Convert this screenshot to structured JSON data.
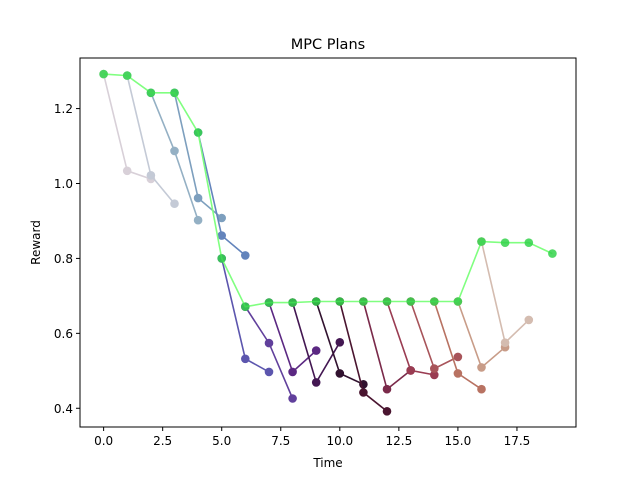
{
  "chart_data": {
    "type": "line",
    "title": "MPC Plans",
    "xlabel": "Time",
    "ylabel": "Reward",
    "xlim": [
      -1.0,
      20.0
    ],
    "ylim": [
      0.35,
      1.335
    ],
    "xticks": [
      0.0,
      2.5,
      5.0,
      7.5,
      10.0,
      12.5,
      15.0,
      17.5
    ],
    "xtick_labels": [
      "0.0",
      "2.5",
      "5.0",
      "7.5",
      "10.0",
      "12.5",
      "15.0",
      "17.5"
    ],
    "yticks": [
      0.4,
      0.6,
      0.8,
      1.0,
      1.2
    ],
    "ytick_labels": [
      "0.4",
      "0.6",
      "0.8",
      "1.0",
      "1.2"
    ],
    "grid": false,
    "legend": "none",
    "plans": [
      {
        "color": "#d8d0d8",
        "x": [
          0,
          1,
          2
        ],
        "y": [
          1.292,
          1.034,
          1.012
        ]
      },
      {
        "color": "#c4cad6",
        "x": [
          1,
          2,
          3
        ],
        "y": [
          1.288,
          1.022,
          0.946
        ]
      },
      {
        "color": "#94b0c4",
        "x": [
          2,
          3,
          4
        ],
        "y": [
          1.242,
          1.087,
          0.902
        ]
      },
      {
        "color": "#7d9fbe",
        "x": [
          3,
          4,
          5
        ],
        "y": [
          1.242,
          0.961,
          0.908
        ]
      },
      {
        "color": "#6384bc",
        "x": [
          4,
          5,
          6
        ],
        "y": [
          1.136,
          0.861,
          0.808
        ]
      },
      {
        "color": "#5c56ae",
        "x": [
          5,
          6,
          7
        ],
        "y": [
          0.8,
          0.532,
          0.497
        ]
      },
      {
        "color": "#61409c",
        "x": [
          6,
          7,
          8
        ],
        "y": [
          0.671,
          0.574,
          0.426
        ]
      },
      {
        "color": "#5b2882",
        "x": [
          7,
          8,
          9
        ],
        "y": [
          0.682,
          0.497,
          0.554
        ]
      },
      {
        "color": "#431752",
        "x": [
          8,
          9,
          10
        ],
        "y": [
          0.682,
          0.469,
          0.576
        ]
      },
      {
        "color": "#31122f",
        "x": [
          9,
          10,
          11
        ],
        "y": [
          0.685,
          0.493,
          0.464
        ]
      },
      {
        "color": "#4a1530",
        "x": [
          10,
          11,
          12
        ],
        "y": [
          0.685,
          0.442,
          0.392
        ]
      },
      {
        "color": "#7a2a4a",
        "x": [
          11,
          12,
          13
        ],
        "y": [
          0.685,
          0.451,
          0.501
        ]
      },
      {
        "color": "#9a3c52",
        "x": [
          12,
          13,
          14
        ],
        "y": [
          0.685,
          0.501,
          0.489
        ]
      },
      {
        "color": "#a8545a",
        "x": [
          13,
          14,
          15
        ],
        "y": [
          0.685,
          0.506,
          0.537
        ]
      },
      {
        "color": "#b87262",
        "x": [
          14,
          15,
          16
        ],
        "y": [
          0.685,
          0.493,
          0.451
        ]
      },
      {
        "color": "#c89c88",
        "x": [
          15,
          16,
          17
        ],
        "y": [
          0.685,
          0.509,
          0.563
        ]
      },
      {
        "color": "#d4bcb0",
        "x": [
          16,
          17,
          18
        ],
        "y": [
          0.845,
          0.575,
          0.636
        ]
      }
    ],
    "executed": {
      "line_color": "#80ff80",
      "marker_color": "#33d24a",
      "x": [
        0,
        1,
        2,
        3,
        4,
        5,
        6,
        7,
        8,
        9,
        10,
        11,
        12,
        13,
        14,
        15,
        16,
        17,
        18,
        19
      ],
      "y": [
        1.292,
        1.288,
        1.242,
        1.242,
        1.136,
        0.8,
        0.671,
        0.682,
        0.682,
        0.685,
        0.685,
        0.685,
        0.685,
        0.685,
        0.685,
        0.685,
        0.845,
        0.842,
        0.842,
        0.813
      ]
    }
  }
}
